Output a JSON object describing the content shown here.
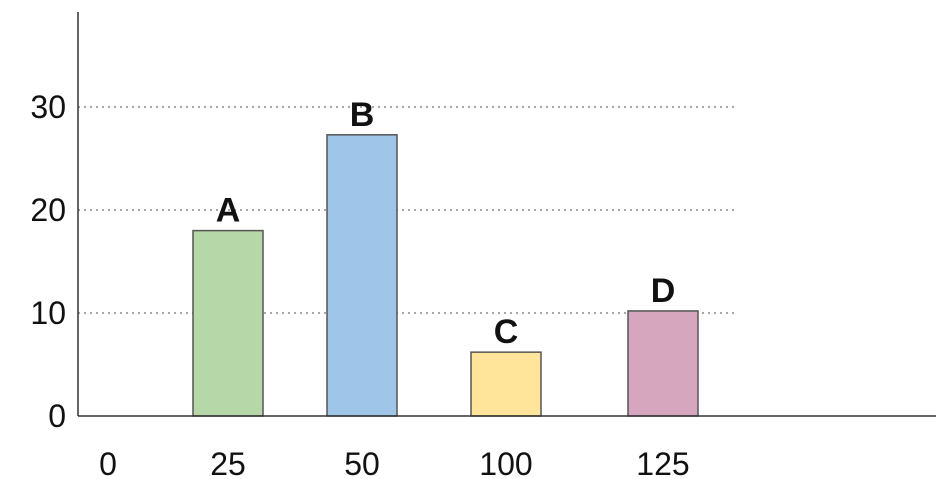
{
  "chart_data": {
    "type": "bar",
    "categories": [
      "25",
      "50",
      "100",
      "125"
    ],
    "values": [
      18,
      27.3,
      6.2,
      10.2
    ],
    "bar_labels": [
      "A",
      "B",
      "C",
      "D"
    ],
    "colors": [
      "#b6d7a8",
      "#9fc5e8",
      "#ffe599",
      "#d5a6bd"
    ],
    "x_tick_labels": [
      "0",
      "25",
      "50",
      "100",
      "125"
    ],
    "y_ticks": [
      "0",
      "10",
      "20",
      "30"
    ],
    "ylim": [
      0,
      40
    ],
    "grid": "horizontal dotted",
    "title": "",
    "xlabel": "",
    "ylabel": ""
  }
}
